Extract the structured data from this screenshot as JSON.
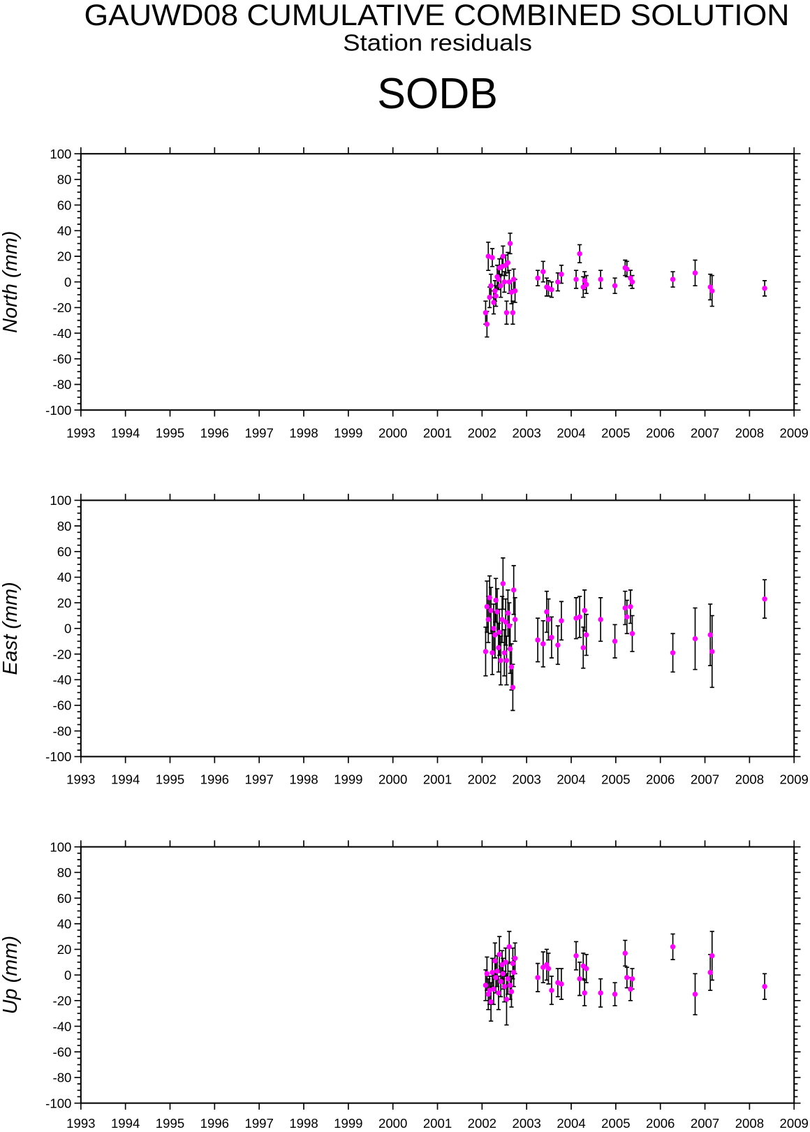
{
  "header": {
    "title": "GAUWD08 CUMULATIVE COMBINED SOLUTION",
    "subtitle": "Station residuals",
    "station": "SODB"
  },
  "colors": {
    "point": "#ff00ff",
    "error_bar": "#000000",
    "axis": "#000000"
  },
  "chart_data": [
    {
      "type": "scatter",
      "ylabel": "North (mm)",
      "xlim": [
        1993,
        2009
      ],
      "ylim": [
        -100,
        100
      ],
      "grid": false,
      "error_bars": true,
      "xticks": [
        1993,
        1994,
        1995,
        1996,
        1997,
        1998,
        1999,
        2000,
        2001,
        2002,
        2003,
        2004,
        2005,
        2006,
        2007,
        2008,
        2009
      ],
      "yticks": [
        100,
        80,
        60,
        40,
        20,
        0,
        -20,
        -40,
        -60,
        -80,
        -100
      ],
      "x": [
        2002.08,
        2002.11,
        2002.14,
        2002.17,
        2002.2,
        2002.23,
        2002.26,
        2002.29,
        2002.31,
        2002.34,
        2002.37,
        2002.39,
        2002.42,
        2002.45,
        2002.47,
        2002.5,
        2002.53,
        2002.55,
        2002.58,
        2002.61,
        2002.63,
        2002.66,
        2002.69,
        2002.71,
        2002.74,
        2003.25,
        2003.37,
        2003.45,
        2003.49,
        2003.56,
        2003.7,
        2003.78,
        2004.11,
        2004.19,
        2004.27,
        2004.3,
        2004.34,
        2004.66,
        2004.98,
        2005.21,
        2005.25,
        2005.33,
        2005.37,
        2006.28,
        2006.78,
        2007.12,
        2007.16,
        2008.34
      ],
      "y": [
        -24,
        -33,
        20,
        -12,
        -3,
        19,
        -16,
        -7,
        -11,
        4,
        2,
        11,
        -3,
        12,
        20,
        0,
        13,
        -24,
        15,
        0,
        30,
        -8,
        -24,
        2,
        -7,
        3,
        8,
        -4,
        -5,
        -6,
        0,
        6,
        2,
        22,
        -4,
        1,
        -2,
        2,
        -3,
        11,
        10,
        3,
        0,
        2,
        7,
        -4,
        -7,
        -5
      ],
      "err": [
        9,
        10,
        11,
        8,
        9,
        7,
        9,
        8,
        8,
        9,
        8,
        7,
        9,
        7,
        8,
        8,
        8,
        9,
        8,
        9,
        8,
        9,
        9,
        8,
        9,
        6,
        8,
        7,
        6,
        6,
        7,
        7,
        7,
        7,
        8,
        7,
        7,
        7,
        6,
        6,
        6,
        6,
        5,
        6,
        10,
        10,
        12,
        6
      ]
    },
    {
      "type": "scatter",
      "ylabel": "East (mm)",
      "xlim": [
        1993,
        2009
      ],
      "ylim": [
        -100,
        100
      ],
      "grid": false,
      "error_bars": true,
      "xticks": [
        1993,
        1994,
        1995,
        1996,
        1997,
        1998,
        1999,
        2000,
        2001,
        2002,
        2003,
        2004,
        2005,
        2006,
        2007,
        2008,
        2009
      ],
      "yticks": [
        100,
        80,
        60,
        40,
        20,
        0,
        -20,
        -40,
        -60,
        -80,
        -100
      ],
      "x": [
        2002.08,
        2002.11,
        2002.14,
        2002.17,
        2002.2,
        2002.23,
        2002.26,
        2002.29,
        2002.31,
        2002.34,
        2002.37,
        2002.39,
        2002.42,
        2002.45,
        2002.47,
        2002.5,
        2002.53,
        2002.55,
        2002.58,
        2002.61,
        2002.63,
        2002.66,
        2002.69,
        2002.71,
        2002.74,
        2003.25,
        2003.37,
        2003.45,
        2003.49,
        2003.56,
        2003.7,
        2003.78,
        2004.11,
        2004.19,
        2004.27,
        2004.3,
        2004.34,
        2004.66,
        2004.98,
        2005.21,
        2005.25,
        2005.33,
        2005.37,
        2006.28,
        2006.78,
        2007.12,
        2007.16,
        2008.34
      ],
      "y": [
        -18,
        17,
        7,
        24,
        14,
        -19,
        0,
        -5,
        22,
        13,
        -15,
        -3,
        -25,
        7,
        35,
        -19,
        5,
        -25,
        12,
        2,
        -16,
        -30,
        -46,
        30,
        7,
        -9,
        -12,
        13,
        7,
        -7,
        -13,
        6,
        8,
        9,
        -15,
        14,
        -5,
        7,
        -10,
        16,
        9,
        17,
        -4,
        -19,
        -8,
        -5,
        -18,
        23
      ],
      "err": [
        19,
        20,
        18,
        17,
        18,
        17,
        19,
        18,
        17,
        18,
        19,
        18,
        19,
        18,
        20,
        18,
        18,
        19,
        18,
        18,
        19,
        18,
        18,
        19,
        17,
        17,
        18,
        16,
        16,
        16,
        15,
        15,
        16,
        16,
        16,
        16,
        16,
        17,
        13,
        13,
        13,
        13,
        14,
        15,
        24,
        24,
        28,
        15
      ]
    },
    {
      "type": "scatter",
      "ylabel": "Up (mm)",
      "xlim": [
        1993,
        2009
      ],
      "ylim": [
        -100,
        100
      ],
      "grid": false,
      "error_bars": true,
      "xticks": [
        1993,
        1994,
        1995,
        1996,
        1997,
        1998,
        1999,
        2000,
        2001,
        2002,
        2003,
        2004,
        2005,
        2006,
        2007,
        2008,
        2009
      ],
      "yticks": [
        100,
        80,
        60,
        40,
        20,
        0,
        -20,
        -40,
        -60,
        -80,
        -100
      ],
      "x": [
        2002.08,
        2002.11,
        2002.14,
        2002.17,
        2002.2,
        2002.23,
        2002.26,
        2002.29,
        2002.31,
        2002.34,
        2002.37,
        2002.39,
        2002.42,
        2002.45,
        2002.47,
        2002.5,
        2002.53,
        2002.55,
        2002.58,
        2002.61,
        2002.63,
        2002.66,
        2002.69,
        2002.71,
        2002.74,
        2003.25,
        2003.37,
        2003.45,
        2003.49,
        2003.56,
        2003.7,
        2003.78,
        2004.11,
        2004.19,
        2004.27,
        2004.3,
        2004.34,
        2004.66,
        2004.98,
        2005.21,
        2005.25,
        2005.33,
        2005.37,
        2006.28,
        2006.78,
        2007.12,
        2007.16,
        2008.34
      ],
      "y": [
        -8,
        1,
        -15,
        -12,
        -21,
        2,
        -11,
        11,
        -2,
        3,
        -14,
        16,
        -5,
        8,
        1,
        -9,
        10,
        -19,
        -3,
        22,
        -8,
        -13,
        9,
        2,
        13,
        -2,
        6,
        8,
        5,
        -12,
        -6,
        -7,
        15,
        -3,
        7,
        -14,
        5,
        -14,
        -15,
        17,
        -2,
        -11,
        -3,
        22,
        -15,
        2,
        15,
        -9
      ],
      "err": [
        12,
        13,
        12,
        11,
        15,
        11,
        12,
        14,
        12,
        12,
        13,
        14,
        12,
        11,
        12,
        12,
        11,
        20,
        12,
        12,
        11,
        12,
        12,
        11,
        12,
        11,
        12,
        12,
        12,
        11,
        11,
        12,
        11,
        13,
        10,
        10,
        11,
        11,
        9,
        10,
        8,
        9,
        8,
        10,
        16,
        14,
        19,
        10
      ]
    }
  ]
}
